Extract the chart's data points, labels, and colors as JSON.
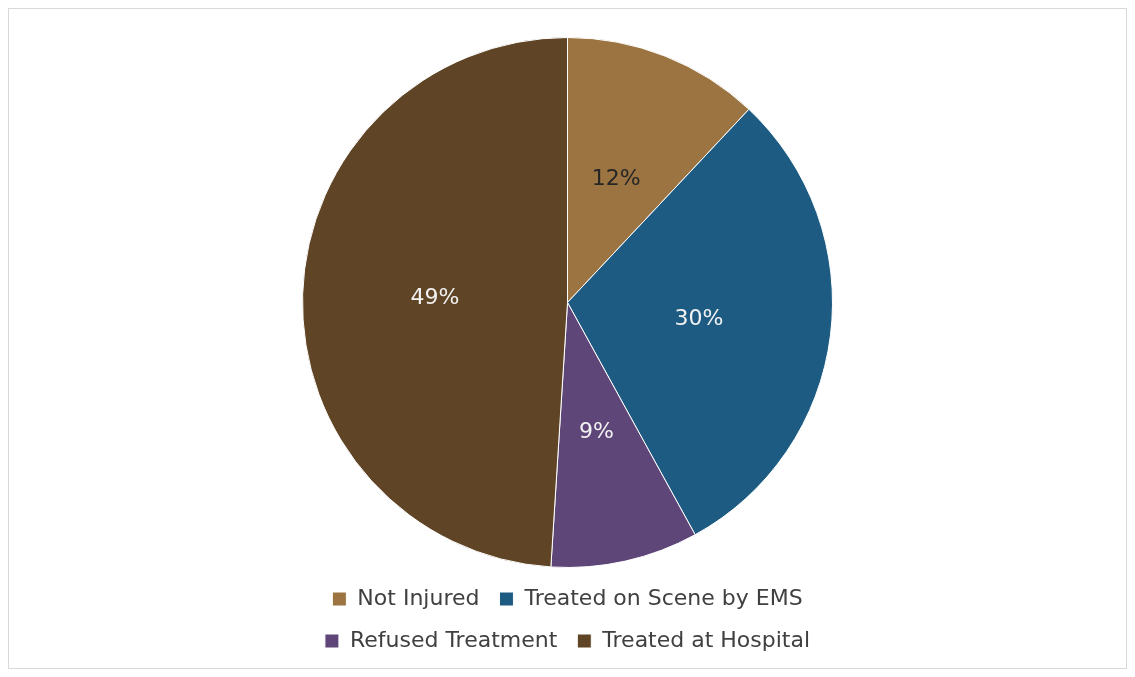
{
  "chart_data": {
    "type": "pie",
    "categories": [
      "Not Injured",
      "Treated on Scene by EMS",
      "Refused Treatment",
      "Treated at Hospital"
    ],
    "values": [
      12,
      30,
      9,
      49
    ],
    "colors": [
      "#9c7442",
      "#1d5b83",
      "#5f4679",
      "#5f4525"
    ],
    "value_labels": [
      "12%",
      "30%",
      "9%",
      "49%"
    ],
    "legend": "bottom"
  }
}
